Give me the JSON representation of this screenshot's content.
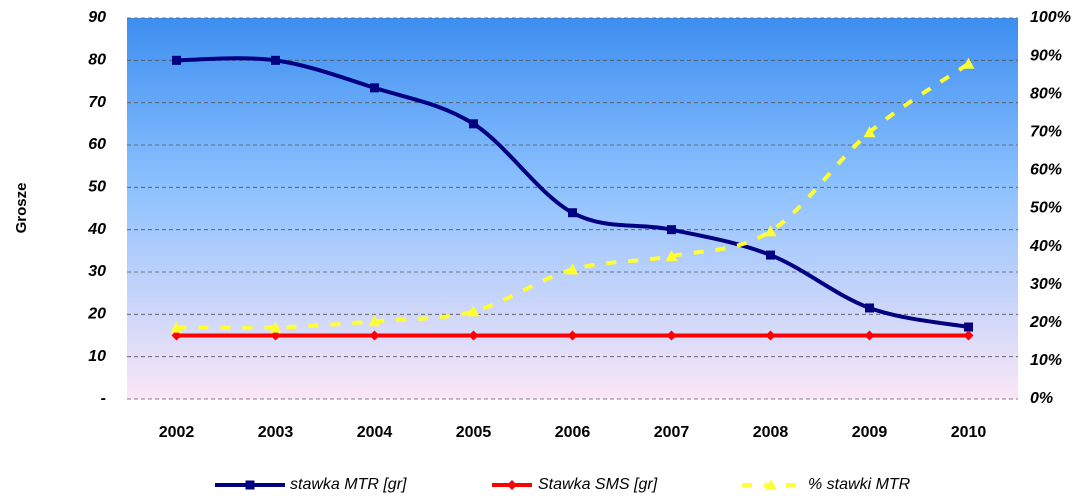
{
  "chart_data": {
    "type": "line",
    "y_label": "Grosze",
    "categories": [
      "2002",
      "2003",
      "2004",
      "2005",
      "2006",
      "2007",
      "2008",
      "2009",
      "2010"
    ],
    "series": [
      {
        "name": "stawka MTR  [gr]",
        "color": "#000080",
        "values": [
          80,
          80,
          73.5,
          65,
          44,
          40,
          34,
          21.5,
          17
        ]
      },
      {
        "name": "Stawka SMS [gr]",
        "color": "#ff0000",
        "values": [
          15,
          15,
          15,
          15,
          15,
          15,
          15,
          15,
          15
        ]
      },
      {
        "name": "% stawki MTR",
        "color": "#ffff33",
        "axis": "y2",
        "values": [
          18.75,
          18.75,
          20.4,
          23,
          34,
          37.5,
          44,
          70,
          88
        ]
      }
    ],
    "ylim": [
      0,
      90
    ],
    "yticks": [
      {
        "value": 0,
        "label": "-"
      },
      10,
      20,
      30,
      40,
      50,
      60,
      70,
      80,
      90
    ],
    "y2lim": [
      0,
      100
    ],
    "y2ticks": [
      {
        "value": 0,
        "label": "0%"
      },
      {
        "value": 10,
        "label": "10%"
      },
      {
        "value": 20,
        "label": "20%"
      },
      {
        "value": 30,
        "label": "30%"
      },
      {
        "value": 40,
        "label": "40%"
      },
      {
        "value": 50,
        "label": "50%"
      },
      {
        "value": 60,
        "label": "60%"
      },
      {
        "value": 70,
        "label": "70%"
      },
      {
        "value": 80,
        "label": "80%"
      },
      {
        "value": 90,
        "label": "90%"
      },
      {
        "value": 100,
        "label": "100%"
      }
    ],
    "grid": true
  }
}
